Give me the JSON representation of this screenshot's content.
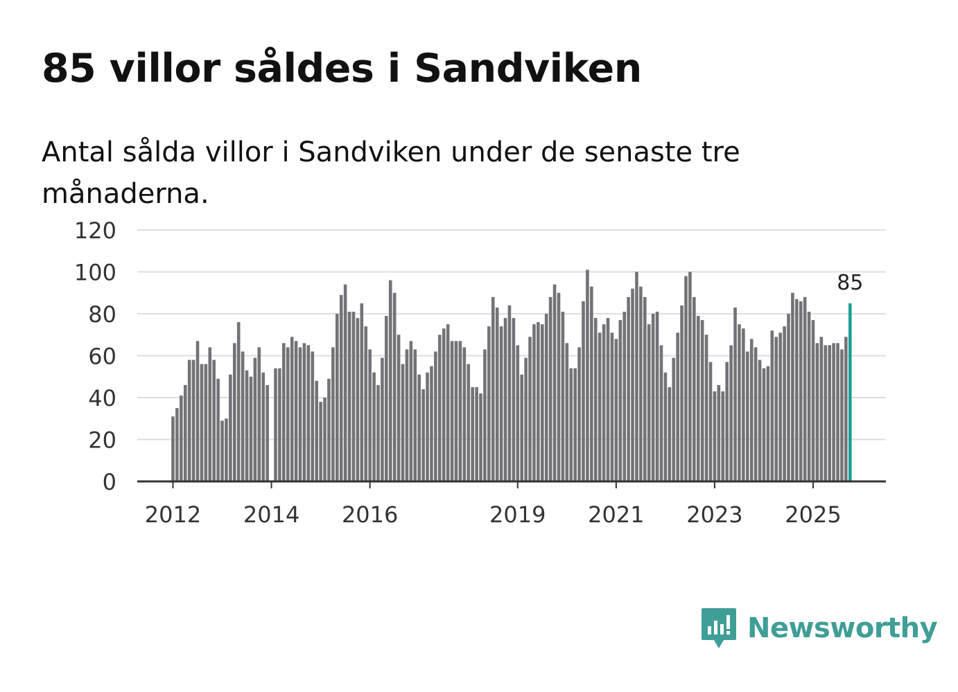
{
  "title": "85 villor såldes i Sandviken",
  "subtitle": "Antal sålda villor i Sandviken under de senaste tre månaderna.",
  "brand": {
    "name": "Newsworthy",
    "color": "#3f9e96",
    "icon": "newsworthy-logo-icon"
  },
  "colors": {
    "bar": "#737277",
    "highlight": "#1a9e95"
  },
  "chart_data": {
    "type": "bar",
    "title": "85 villor såldes i Sandviken",
    "xlabel": "",
    "ylabel": "",
    "ylim": [
      0,
      120
    ],
    "yticks": [
      0,
      20,
      40,
      60,
      80,
      100,
      120
    ],
    "grid": true,
    "start": "2012-01",
    "xtick_labels": [
      {
        "label": "2012",
        "index": 0
      },
      {
        "label": "2014",
        "index": 24
      },
      {
        "label": "2016",
        "index": 48
      },
      {
        "label": "2019",
        "index": 84
      },
      {
        "label": "2021",
        "index": 108
      },
      {
        "label": "2023",
        "index": 132
      },
      {
        "label": "2025",
        "index": 156
      }
    ],
    "highlight_label": "85",
    "values": [
      31,
      35,
      41,
      46,
      58,
      58,
      67,
      56,
      56,
      64,
      58,
      49,
      29,
      30,
      51,
      66,
      76,
      62,
      53,
      50,
      59,
      64,
      52,
      46,
      null,
      54,
      54,
      66,
      64,
      69,
      67,
      64,
      66,
      65,
      62,
      48,
      38,
      40,
      49,
      64,
      80,
      89,
      94,
      81,
      81,
      78,
      85,
      74,
      63,
      52,
      46,
      59,
      79,
      96,
      90,
      70,
      56,
      63,
      67,
      63,
      51,
      44,
      52,
      55,
      62,
      70,
      73,
      75,
      67,
      67,
      67,
      64,
      56,
      45,
      45,
      42,
      63,
      74,
      88,
      83,
      74,
      78,
      84,
      78,
      65,
      51,
      59,
      69,
      75,
      76,
      75,
      80,
      88,
      94,
      90,
      81,
      66,
      54,
      54,
      64,
      86,
      101,
      93,
      78,
      71,
      75,
      78,
      71,
      68,
      77,
      81,
      88,
      92,
      100,
      93,
      88,
      75,
      80,
      81,
      65,
      52,
      45,
      59,
      71,
      84,
      98,
      100,
      88,
      79,
      77,
      70,
      57,
      43,
      46,
      43,
      57,
      65,
      83,
      75,
      73,
      62,
      68,
      64,
      58,
      54,
      55,
      72,
      69,
      71,
      74,
      80,
      90,
      87,
      86,
      88,
      81,
      77,
      66,
      69,
      65,
      65,
      66,
      66,
      63,
      69,
      85
    ]
  }
}
